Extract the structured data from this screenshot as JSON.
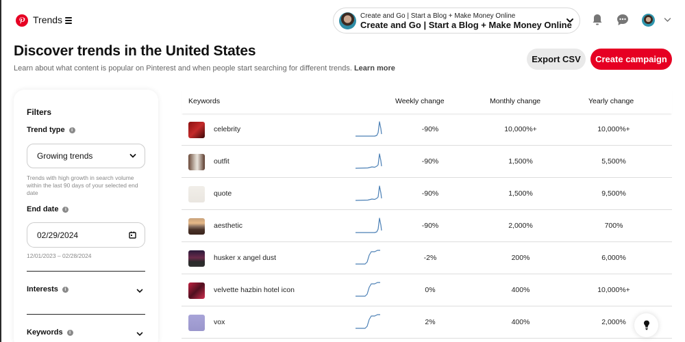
{
  "header": {
    "brand": "Trends",
    "account": {
      "line1": "Create and Go | Start a Blog + Make Money Online",
      "line2": "Create and Go | Start a Blog + Make Money Online"
    },
    "icons": [
      "pinterest-logo-icon",
      "menu-icon",
      "chevron-down-icon",
      "bell-icon",
      "chat-icon",
      "avatar",
      "chevron-down-icon"
    ]
  },
  "page": {
    "title": "Discover trends in the United States",
    "subtitle": "Learn about what content is popular on Pinterest and when people start searching for different trends.",
    "learn_more": "Learn more"
  },
  "actions": {
    "export_label": "Export CSV",
    "create_label": "Create campaign"
  },
  "filters": {
    "title": "Filters",
    "trend_type": {
      "label": "Trend type",
      "value": "Growing trends",
      "help": "Trends with high growth in search volume within the last 90 days of your selected end date"
    },
    "end_date": {
      "label": "End date",
      "value": "02/29/2024",
      "range": "12/01/2023 – 02/28/2024"
    },
    "interests": {
      "label": "Interests"
    },
    "keywords": {
      "label": "Keywords"
    }
  },
  "table": {
    "columns": [
      "Keywords",
      "Weekly change",
      "Monthly change",
      "Yearly change"
    ],
    "rows": [
      {
        "keyword": "celebrity",
        "weekly": "-90%",
        "monthly": "10,000%+",
        "yearly": "10,000%+",
        "spark": "spike",
        "thumb": "linear-gradient(135deg,#8a1010,#c42a2a 50%,#3a0808)"
      },
      {
        "keyword": "outfit",
        "weekly": "-90%",
        "monthly": "1,500%",
        "yearly": "5,500%",
        "spark": "spike2",
        "thumb": "linear-gradient(90deg,#6b4a3a,#d8d0c6 45%,#e8e2da 55%,#5a3a2c)"
      },
      {
        "keyword": "quote",
        "weekly": "-90%",
        "monthly": "1,500%",
        "yearly": "9,500%",
        "spark": "spike2",
        "thumb": "linear-gradient(180deg,#f1eee9,#eae6e0)"
      },
      {
        "keyword": "aesthetic",
        "weekly": "-90%",
        "monthly": "2,000%",
        "yearly": "700%",
        "spark": "spike",
        "thumb": "linear-gradient(180deg,#c9a27a,#e6b888 30%,#8a7060 50%,#4a3228 70%,#3a241c)"
      },
      {
        "keyword": "husker x angel dust",
        "weekly": "-2%",
        "monthly": "200%",
        "yearly": "6,000%",
        "spark": "step",
        "thumb": "linear-gradient(180deg,#2a1a3a,#6a2a4a 45%,#2a2a2a 70%,#303030)"
      },
      {
        "keyword": "velvette hazbin hotel icon",
        "weekly": "0%",
        "monthly": "400%",
        "yearly": "10,000%+",
        "spark": "step",
        "thumb": "linear-gradient(135deg,#c02040,#501020 50%,#d03050)"
      },
      {
        "keyword": "vox",
        "weekly": "2%",
        "monthly": "400%",
        "yearly": "2,000%",
        "spark": "step",
        "thumb": "linear-gradient(180deg,#a8a4d8,#9a96cc)"
      }
    ]
  },
  "colors": {
    "brand_red": "#e60023",
    "sparkline": "#4a7fb5"
  }
}
